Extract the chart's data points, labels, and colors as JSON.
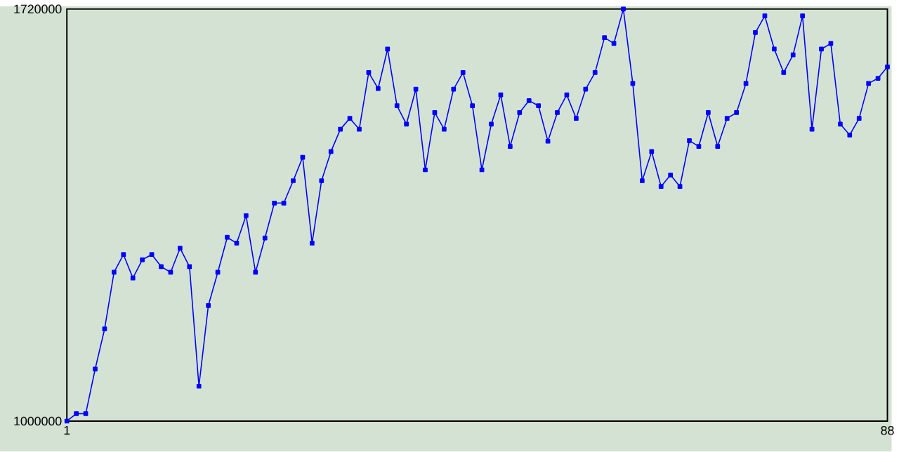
{
  "chart_data": {
    "type": "line",
    "x": [
      1,
      2,
      3,
      4,
      5,
      6,
      7,
      8,
      9,
      10,
      11,
      12,
      13,
      14,
      15,
      16,
      17,
      18,
      19,
      20,
      21,
      22,
      23,
      24,
      25,
      26,
      27,
      28,
      29,
      30,
      31,
      32,
      33,
      34,
      35,
      36,
      37,
      38,
      39,
      40,
      41,
      42,
      43,
      44,
      45,
      46,
      47,
      48,
      49,
      50,
      51,
      52,
      53,
      54,
      55,
      56,
      57,
      58,
      59,
      60,
      61,
      62,
      63,
      64,
      65,
      66,
      67,
      68,
      69,
      70,
      71,
      72,
      73,
      74,
      75,
      76,
      77,
      78,
      79,
      80,
      81,
      82,
      83,
      84,
      85,
      86,
      87,
      88
    ],
    "values": [
      1000000,
      1013000,
      1013000,
      1091000,
      1161000,
      1260000,
      1291000,
      1250000,
      1282000,
      1291000,
      1270000,
      1260000,
      1302000,
      1270000,
      1061000,
      1202000,
      1260000,
      1321000,
      1311000,
      1359000,
      1260000,
      1320000,
      1381000,
      1381000,
      1420000,
      1461000,
      1311000,
      1420000,
      1471000,
      1510000,
      1529000,
      1510000,
      1609000,
      1581000,
      1650000,
      1551000,
      1519000,
      1580000,
      1439000,
      1539000,
      1510000,
      1580000,
      1609000,
      1551000,
      1439000,
      1519000,
      1570000,
      1480000,
      1539000,
      1560000,
      1551000,
      1489000,
      1539000,
      1570000,
      1529000,
      1580000,
      1609000,
      1670000,
      1660000,
      1720000,
      1590000,
      1420000,
      1471000,
      1410000,
      1430000,
      1410000,
      1490000,
      1480000,
      1539000,
      1480000,
      1529000,
      1539000,
      1590000,
      1679000,
      1708000,
      1650000,
      1609000,
      1640000,
      1708000,
      1510000,
      1650000,
      1660000,
      1519000,
      1500000,
      1529000,
      1590000,
      1599000,
      1619000
    ],
    "color": "#0000ff",
    "marker": "square",
    "xlim": [
      1,
      88
    ],
    "ylim": [
      1000000,
      1720000
    ],
    "xticks": [
      1,
      88
    ],
    "yticks": [
      1000000,
      1720000
    ]
  }
}
